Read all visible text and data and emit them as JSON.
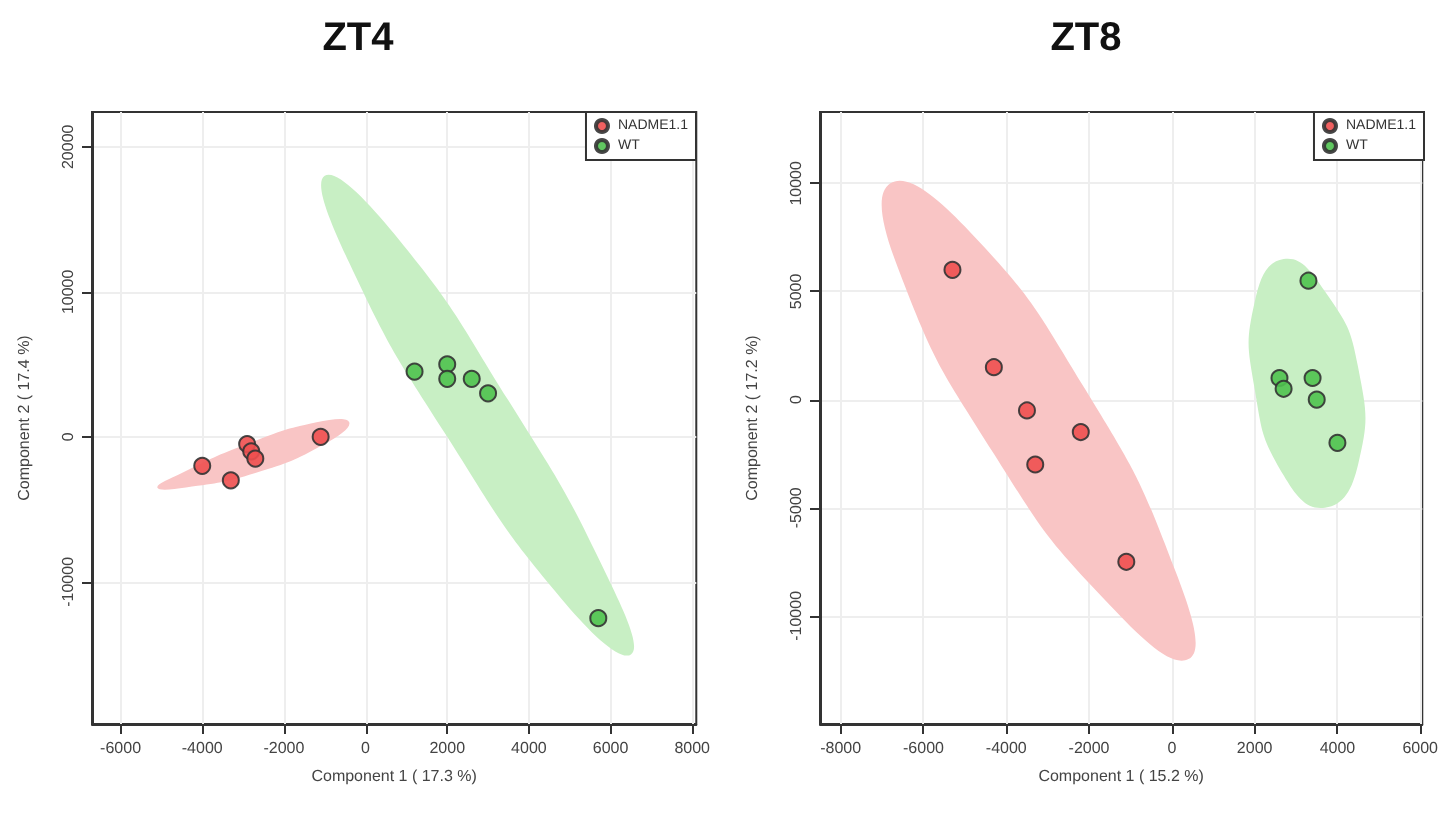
{
  "chart_data": [
    {
      "type": "scatter",
      "title": "ZT4",
      "xlabel": "Component 1 ( 17.3 %)",
      "ylabel": "Component 2 ( 17.4 %)",
      "xlim": [
        -6700,
        8100
      ],
      "ylim": [
        -19800,
        22400
      ],
      "xticks": [
        -6000,
        -4000,
        -2000,
        0,
        2000,
        4000,
        6000,
        8000
      ],
      "yticks": [
        -10000,
        0,
        10000,
        20000
      ],
      "grid": true,
      "legend": "top right",
      "marker": "circle",
      "series": [
        {
          "type": "area",
          "marker": "none",
          "color": "#f9c5c5",
          "x": [
            -400,
            -1000,
            -2700,
            -4400,
            -5100,
            -4500,
            -2900,
            -1200
          ],
          "values": [
            1000,
            -500,
            -2500,
            -3500,
            -3500,
            -2500,
            -500,
            1000
          ]
        },
        {
          "type": "area",
          "marker": "none",
          "color": "#c8efc4",
          "x": [
            -1000,
            700,
            3500,
            5900,
            6500,
            4900,
            2000,
            -400
          ],
          "values": [
            18000,
            14000,
            2500,
            -9500,
            -15000,
            -11500,
            0,
            12000
          ]
        },
        {
          "name": "NADME1.1",
          "color": "#ee4f4f",
          "x": [
            -4000,
            -3300,
            -2900,
            -2800,
            -2700,
            -1100
          ],
          "values": [
            -2000,
            -3000,
            -500,
            -1000,
            -1500,
            0
          ]
        },
        {
          "name": "WT",
          "color": "#4fc24f",
          "x": [
            1200,
            2000,
            2000,
            2600,
            3000,
            5700
          ],
          "values": [
            4500,
            5000,
            4000,
            4000,
            3000,
            -12500
          ]
        }
      ]
    },
    {
      "type": "scatter",
      "title": "ZT8",
      "xlabel": "Component 1 ( 15.2 %)",
      "ylabel": "Component 2 ( 17.2 %)",
      "xlim": [
        -8500,
        6050
      ],
      "ylim": [
        -15000,
        13300
      ],
      "xticks": [
        -8000,
        -6000,
        -4000,
        -2000,
        0,
        2000,
        4000,
        6000
      ],
      "yticks": [
        -10000,
        -5000,
        0,
        5000,
        10000
      ],
      "grid": true,
      "legend": "top right",
      "marker": "circle",
      "series": [
        {
          "type": "area",
          "marker": "none",
          "color": "#f9c5c5",
          "x": [
            -6800,
            -5000,
            -2100,
            100,
            400,
            -1500,
            -4300,
            -6600
          ],
          "values": [
            10000,
            8000,
            500,
            -8000,
            -12000,
            -9500,
            -2500,
            6000
          ]
        },
        {
          "type": "area",
          "marker": "none",
          "color": "#c8efc4",
          "x": [
            2700,
            3700,
            4500,
            4500,
            3700,
            2700,
            2000,
            2000
          ],
          "values": [
            6500,
            5000,
            1500,
            -3000,
            -5000,
            -3500,
            500,
            4500
          ]
        },
        {
          "name": "NADME1.1",
          "color": "#ee4f4f",
          "x": [
            -5300,
            -4300,
            -3500,
            -2200,
            -3300,
            -1100
          ],
          "values": [
            6000,
            1500,
            -500,
            -1500,
            -3000,
            -7500
          ]
        },
        {
          "name": "WT",
          "color": "#4fc24f",
          "x": [
            3300,
            2600,
            2700,
            3400,
            3500,
            4000
          ],
          "values": [
            5500,
            1000,
            500,
            1000,
            0,
            -2000
          ]
        }
      ]
    }
  ]
}
